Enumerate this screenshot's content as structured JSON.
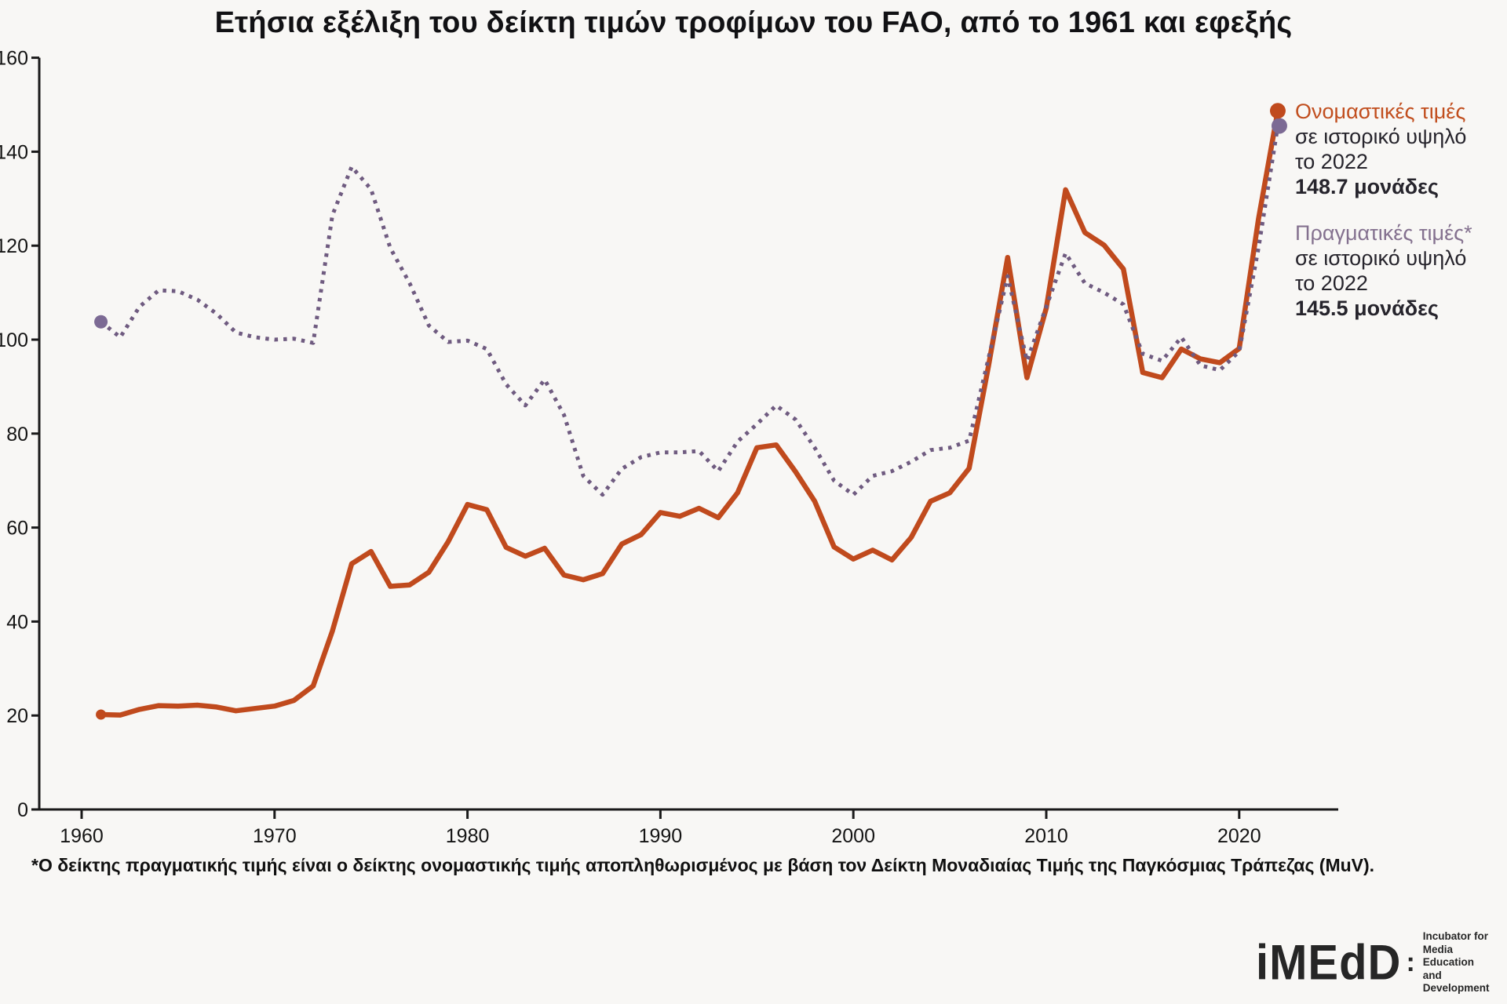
{
  "title": "Ετήσια εξέλιξη του δείκτη τιμών τροφίμων του FAO, από το 1961 και εφεξής",
  "chart_data": {
    "type": "line",
    "title": "Ετήσια εξέλιξη του δείκτη τιμών τροφίμων του FAO, από το 1961 και εφεξής",
    "xlabel": "",
    "ylabel": "",
    "ylim": [
      0,
      160
    ],
    "yticks": [
      0,
      20,
      40,
      60,
      80,
      100,
      120,
      140,
      160
    ],
    "xticks": [
      1960,
      1970,
      1980,
      1990,
      2000,
      2010,
      2020
    ],
    "grid": false,
    "legend_position": "right",
    "axis_color": "#1a1a1a",
    "x": [
      1961,
      1962,
      1963,
      1964,
      1965,
      1966,
      1967,
      1968,
      1969,
      1970,
      1971,
      1972,
      1973,
      1974,
      1975,
      1976,
      1977,
      1978,
      1979,
      1980,
      1981,
      1982,
      1983,
      1984,
      1985,
      1986,
      1987,
      1988,
      1989,
      1990,
      1991,
      1992,
      1993,
      1994,
      1995,
      1996,
      1997,
      1998,
      1999,
      2000,
      2001,
      2002,
      2003,
      2004,
      2005,
      2006,
      2007,
      2008,
      2009,
      2010,
      2011,
      2012,
      2013,
      2014,
      2015,
      2016,
      2017,
      2018,
      2019,
      2020,
      2021,
      2022
    ],
    "series": [
      {
        "name": "Ονομαστικές τιμές",
        "style": "solid",
        "color": "#c04a1d",
        "dot_color": "#c04a1d",
        "values": [
          20.2,
          20.1,
          21.3,
          22.1,
          22.0,
          22.2,
          21.8,
          21.0,
          21.5,
          22.0,
          23.2,
          26.3,
          38.0,
          52.3,
          54.9,
          47.5,
          47.8,
          50.5,
          57.0,
          64.9,
          63.8,
          55.8,
          53.9,
          55.6,
          49.9,
          48.9,
          50.2,
          56.5,
          58.5,
          63.2,
          62.4,
          64.1,
          62.1,
          67.4,
          77.0,
          77.6,
          71.9,
          65.6,
          55.9,
          53.3,
          55.2,
          53.1,
          57.9,
          65.6,
          67.4,
          72.6,
          94.3,
          117.5,
          91.9,
          106.7,
          131.9,
          122.8,
          120.1,
          115.0,
          93.0,
          91.9,
          98.0,
          95.9,
          95.1,
          98.1,
          125.7,
          148.7
        ]
      },
      {
        "name": "Πραγματικές τιμές*",
        "style": "dotted",
        "color": "#6f5b80",
        "dot_color": "#7c6a94",
        "values": [
          103.8,
          100.5,
          107.0,
          110.5,
          110.3,
          108.5,
          105.5,
          101.5,
          100.5,
          100.0,
          100.2,
          99.3,
          126.5,
          136.8,
          132.0,
          119.5,
          112.0,
          103.0,
          99.5,
          99.8,
          98.0,
          90.5,
          86.0,
          91.5,
          84.0,
          71.0,
          67.0,
          72.5,
          75.0,
          76.0,
          76.0,
          76.3,
          72.0,
          78.3,
          82.0,
          86.0,
          83.0,
          77.0,
          70.0,
          67.0,
          71.0,
          72.0,
          74.0,
          76.5,
          77.0,
          78.5,
          96.0,
          113.5,
          95.5,
          107.0,
          118.4,
          112.0,
          110.0,
          107.5,
          97.0,
          95.5,
          100.5,
          94.5,
          93.5,
          97.5,
          119.5,
          145.5
        ]
      }
    ]
  },
  "legend": {
    "nominal": {
      "title": "Ονομαστικές τιμές",
      "line2": "σε ιστορικό υψηλό",
      "line3": "το 2022",
      "value": "148.7 μονάδες"
    },
    "real": {
      "title": "Πραγματικές τιμές*",
      "line2": "σε ιστορικό υψηλό",
      "line3": "το 2022",
      "value": "145.5 μονάδες"
    }
  },
  "footnote": {
    "text": "*Ο δείκτης πραγματικής τιμής είναι ο δείκτης ονομαστικής τιμής αποπληθωρισμένος με βάση τον Δείκτη Μοναδιαίας Τιμής της Παγκόσμιας Τράπεζας (MuV)."
  },
  "logo": {
    "wordmark": "iMEdD",
    "colon": ":",
    "tagline1": "Incubator for",
    "tagline2": "Media Education",
    "tagline3": "and Development"
  },
  "colors": {
    "background": "#f8f7f5",
    "nominal_orange": "#c04a1d",
    "real_purple": "#6f5b80",
    "real_dot_purple": "#7c6a94",
    "text_dark": "#26242c"
  }
}
